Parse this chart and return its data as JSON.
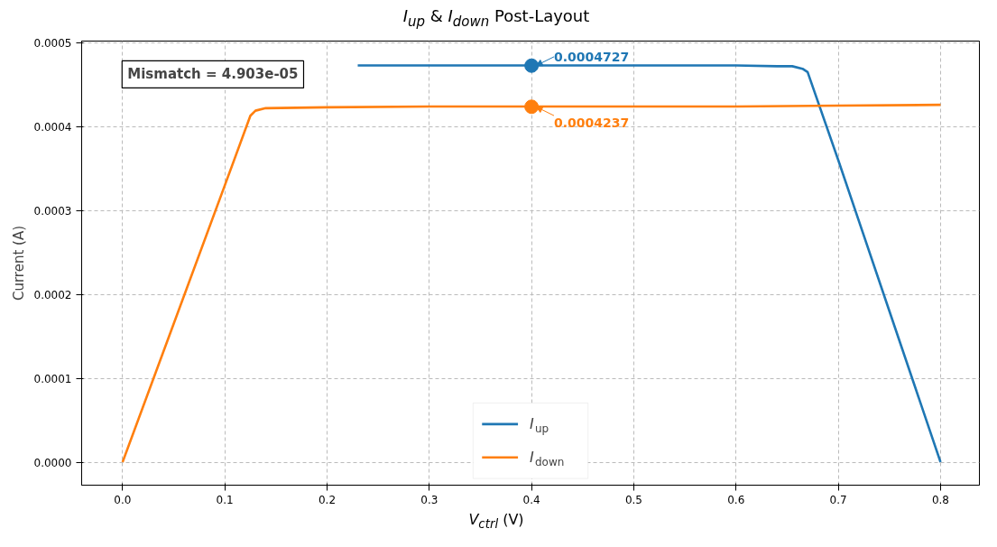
{
  "chart_data": {
    "type": "line",
    "title": "I$_{up}$ & I$_{down}$ Post-Layout",
    "xlabel": "V$_{ctrl}$ (V)",
    "ylabel": "Current (A)",
    "xlim": [
      -0.04,
      0.838
    ],
    "ylim": [
      -2.74e-05,
      0.000502
    ],
    "xticks": [
      {
        "value": 0,
        "label": "0.0"
      },
      0.1,
      0.2,
      0.3,
      0.4,
      0.5,
      0.6,
      0.7,
      0.8
    ],
    "yticks": [
      {
        "value": 0,
        "label": "0.0000"
      },
      {
        "value": 0.0001,
        "label": "0.0001"
      },
      {
        "value": 0.0002,
        "label": "0.0002"
      },
      {
        "value": 0.0003,
        "label": "0.0003"
      },
      {
        "value": 0.0004,
        "label": "0.0004"
      },
      {
        "value": 0.0005,
        "label": "0.0005"
      }
    ],
    "grid": true,
    "legend": "bottom",
    "series": [
      {
        "name": "I$_{up}$",
        "color": "#1f77b4",
        "x": [
          0.23,
          0.3,
          0.4,
          0.5,
          0.6,
          0.64,
          0.655,
          0.665,
          0.67,
          0.7,
          0.75,
          0.8
        ],
        "values": [
          0.000473,
          0.000473,
          0.000473,
          0.000473,
          0.000473,
          0.000472,
          0.000472,
          0.000469,
          0.000465,
          0.00036,
          0.00018,
          0
        ]
      },
      {
        "name": "I$_{down}$",
        "color": "#ff7f0e",
        "x": [
          0,
          0.05,
          0.1,
          0.125,
          0.13,
          0.14,
          0.2,
          0.3,
          0.4,
          0.5,
          0.6,
          0.7,
          0.8
        ],
        "values": [
          0,
          0.000165,
          0.00033,
          0.000413,
          0.000419,
          0.000422,
          0.000423,
          0.000424,
          0.000424,
          0.000424,
          0.000424,
          0.000425,
          0.000426
        ]
      }
    ],
    "annotations": [
      "Mismatch = 4.903e-05",
      {
        "text": "0.0004727",
        "x": 0.4,
        "y": 0.0004727
      },
      {
        "text": "0.0004237",
        "x": 0.4,
        "y": 0.0004237
      }
    ]
  }
}
